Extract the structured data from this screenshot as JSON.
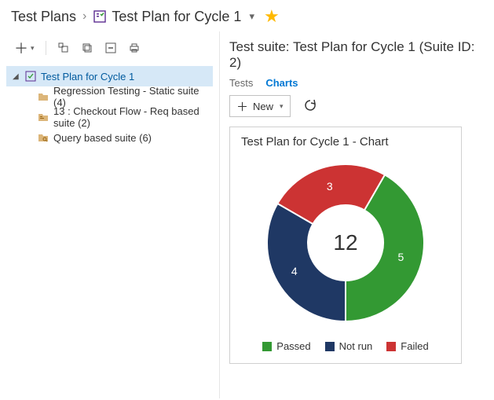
{
  "breadcrumb": {
    "root": "Test Plans",
    "plan_name": "Test Plan for Cycle 1"
  },
  "colors": {
    "star": "#ffb900",
    "link": "#0078d4",
    "selected_bg": "#d6e8f7",
    "selected_fg": "#005a9e",
    "border": "#d0d0d0",
    "folder_icon": "#dcb67a"
  },
  "tree": {
    "root": "Test Plan for Cycle 1",
    "children": [
      {
        "label": "Regression Testing - Static suite (4)"
      },
      {
        "label": "13 : Checkout Flow - Req based suite (2)"
      },
      {
        "label": "Query based suite (6)"
      }
    ]
  },
  "suite": {
    "title": "Test suite: Test Plan for Cycle 1 (Suite ID: 2)",
    "tabs": {
      "tests": "Tests",
      "charts": "Charts"
    },
    "new_button": "New"
  },
  "chart": {
    "type": "donut",
    "title": "Test Plan for Cycle 1 - Chart",
    "total": 12,
    "slices": [
      {
        "label": "Passed",
        "value": 5,
        "color": "#339933"
      },
      {
        "label": "Not run",
        "value": 4,
        "color": "#1f3864"
      },
      {
        "label": "Failed",
        "value": 3,
        "color": "#cc3333"
      }
    ],
    "start_angle_deg": -60,
    "outer_radius": 100,
    "inner_radius": 48,
    "size": 220,
    "center_fontsize": 28,
    "label_fontsize": 14,
    "label_color": "#ffffff",
    "background": "#ffffff"
  }
}
